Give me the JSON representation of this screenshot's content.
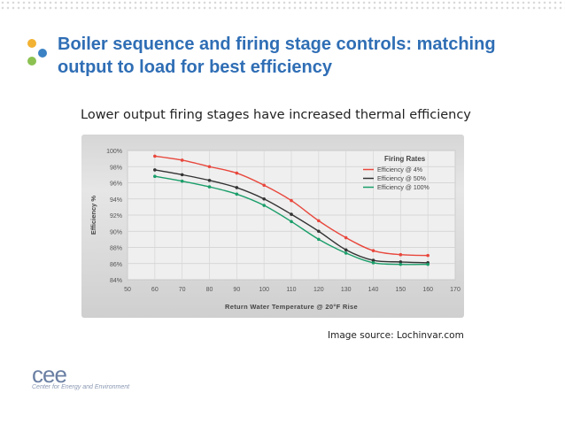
{
  "slide": {
    "title": "Boiler sequence and firing stage controls: matching output to load for best efficiency",
    "subtitle": "Lower output firing stages have increased thermal efficiency",
    "source": "Image source: Lochinvar.com",
    "logo_text": "cee",
    "logo_sub": "Center for Energy and Environment",
    "bullet_colors": [
      "#f2b233",
      "#3b82c4",
      "#8cc152"
    ]
  },
  "chart_data": {
    "type": "line",
    "title": "",
    "xlabel": "Return Water Temperature @ 20°F Rise",
    "ylabel": "Efficiency %",
    "legend_title": "Firing Rates",
    "legend_position": "top-right",
    "xlim": [
      50,
      170
    ],
    "ylim": [
      84,
      100
    ],
    "x_ticks": [
      "50",
      "60",
      "70",
      "80",
      "90",
      "100",
      "110",
      "120",
      "130",
      "140",
      "150",
      "160",
      "170"
    ],
    "y_ticks": [
      "84%",
      "86%",
      "88%",
      "90%",
      "92%",
      "94%",
      "96%",
      "98%",
      "100%"
    ],
    "grid": true,
    "x": [
      60,
      70,
      80,
      90,
      100,
      110,
      120,
      130,
      140,
      150,
      160
    ],
    "series": [
      {
        "name": "Efficiency @ 4%",
        "color": "#e8473c",
        "values": [
          99.3,
          98.8,
          98.0,
          97.2,
          95.7,
          93.8,
          91.3,
          89.2,
          87.6,
          87.1,
          87.0
        ]
      },
      {
        "name": "Efficiency @ 50%",
        "color": "#333333",
        "values": [
          97.6,
          97.0,
          96.3,
          95.4,
          94.0,
          92.1,
          90.0,
          87.7,
          86.4,
          86.2,
          86.1
        ]
      },
      {
        "name": "Efficiency @ 100%",
        "color": "#1a9e6a",
        "values": [
          96.8,
          96.2,
          95.5,
          94.6,
          93.2,
          91.2,
          89.0,
          87.3,
          86.1,
          85.9,
          85.9
        ]
      }
    ]
  }
}
